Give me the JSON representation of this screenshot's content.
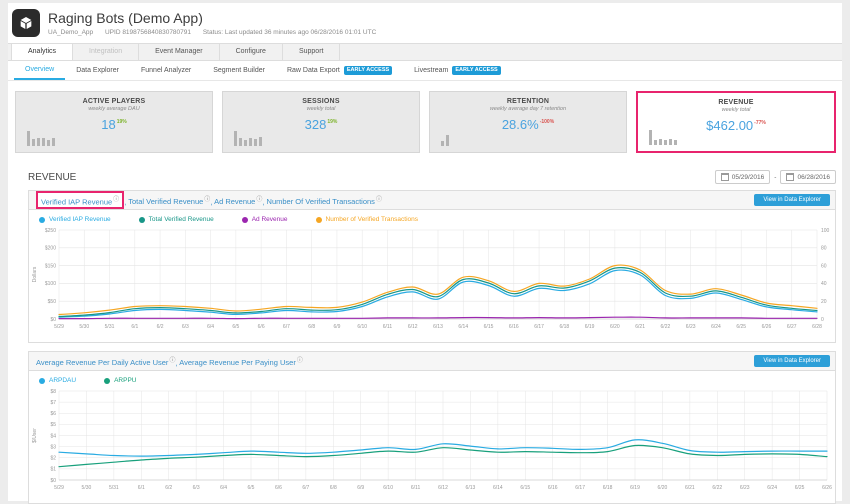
{
  "header": {
    "app_title": "Raging Bots (Demo App)",
    "app_id": "UA_Demo_App",
    "upid": "UPID 8198756840830780791",
    "status": "Status: Last updated 36 minutes ago 06/28/2016 01:01 UTC"
  },
  "main_tabs": [
    {
      "label": "Analytics",
      "state": "active"
    },
    {
      "label": "Integration",
      "state": "disabled"
    },
    {
      "label": "Event Manager",
      "state": "normal"
    },
    {
      "label": "Configure",
      "state": "normal"
    },
    {
      "label": "Support",
      "state": "normal"
    }
  ],
  "sub_tabs": [
    {
      "label": "Overview",
      "active": true
    },
    {
      "label": "Data Explorer",
      "active": false
    },
    {
      "label": "Funnel Analyzer",
      "active": false
    },
    {
      "label": "Segment Builder",
      "active": false
    },
    {
      "label": "Raw Data Export",
      "active": false,
      "badge": "EARLY ACCESS"
    },
    {
      "label": "Livestream",
      "active": false,
      "badge": "EARLY ACCESS"
    }
  ],
  "kpi_cards": [
    {
      "title": "ACTIVE PLAYERS",
      "subtitle": "weekly average DAU",
      "value": "18",
      "delta": "19%",
      "delta_color": "#7db32b",
      "highlighted": false,
      "spark_bars": [
        1,
        0.45,
        0.55,
        0.5,
        0.4,
        0.5
      ]
    },
    {
      "title": "SESSIONS",
      "subtitle": "weekly total",
      "value": "328",
      "delta": "19%",
      "delta_color": "#7db32b",
      "highlighted": false,
      "spark_bars": [
        1,
        0.5,
        0.4,
        0.55,
        0.45,
        0.6
      ]
    },
    {
      "title": "RETENTION",
      "subtitle": "weekly average day 7 retention",
      "value": "28.6%",
      "delta": "-100%",
      "delta_color": "#d9534f",
      "highlighted": false,
      "spark_bars": [
        0.35,
        0.75
      ]
    },
    {
      "title": "REVENUE",
      "subtitle": "weekly total",
      "value": "$462.00",
      "delta": "-77%",
      "delta_color": "#d9534f",
      "highlighted": true,
      "spark_bars": [
        1,
        0.35,
        0.4,
        0.35,
        0.4,
        0.35
      ]
    }
  ],
  "section": {
    "title": "REVENUE",
    "date_from": "05/29/2016",
    "date_to": "06/28/2016"
  },
  "panels": [
    {
      "title_parts": [
        {
          "text": "Verified IAP Revenue",
          "highlighted": true
        },
        {
          "text": "Total Verified Revenue",
          "highlighted": false
        },
        {
          "text": "Ad Revenue",
          "highlighted": false
        },
        {
          "text": "Number Of Verified Transactions",
          "highlighted": false
        }
      ],
      "view_button": "View in Data Explorer"
    },
    {
      "title_parts": [
        {
          "text": "Average Revenue Per Daily Active User",
          "highlighted": false
        },
        {
          "text": "Average Revenue Per Paying User",
          "highlighted": false
        }
      ],
      "view_button": "View in Data Explorer"
    }
  ],
  "colors": {
    "accent_blue": "#29abe2",
    "highlight_pink": "#e8246d",
    "delta_green": "#7db32b",
    "delta_red": "#d9534f"
  },
  "chart_data": [
    {
      "type": "line",
      "title": "Verified IAP Revenue, Total Verified Revenue, Ad Revenue, Number Of Verified Transactions",
      "x": [
        "5/29",
        "5/30",
        "5/31",
        "6/1",
        "6/2",
        "6/3",
        "6/4",
        "6/5",
        "6/6",
        "6/7",
        "6/8",
        "6/9",
        "6/10",
        "6/11",
        "6/12",
        "6/13",
        "6/14",
        "6/15",
        "6/16",
        "6/17",
        "6/18",
        "6/19",
        "6/20",
        "6/21",
        "6/22",
        "6/23",
        "6/24",
        "6/25",
        "6/26",
        "6/27",
        "6/28"
      ],
      "ylabel": "Dollars",
      "ylim": [
        0,
        250
      ],
      "yticks": [
        0,
        50,
        100,
        150,
        200,
        250
      ],
      "ytick_labels": [
        "$0",
        "$50",
        "$100",
        "$150",
        "$200",
        "$250"
      ],
      "y2lim": [
        0,
        100
      ],
      "y2ticks": [
        0,
        20,
        40,
        60,
        80,
        100
      ],
      "grid": true,
      "legend_position": "top-left",
      "series": [
        {
          "name": "Verified IAP Revenue",
          "color": "#29abe2",
          "axis": "left",
          "values": [
            5,
            8,
            14,
            24,
            27,
            24,
            19,
            13,
            17,
            24,
            20,
            21,
            35,
            62,
            76,
            56,
            104,
            94,
            64,
            86,
            80,
            99,
            136,
            124,
            66,
            58,
            73,
            55,
            34,
            26,
            20
          ]
        },
        {
          "name": "Total Verified Revenue",
          "color": "#189688",
          "axis": "left",
          "values": [
            7,
            11,
            18,
            29,
            32,
            29,
            24,
            17,
            21,
            29,
            25,
            26,
            41,
            69,
            83,
            63,
            111,
            101,
            71,
            93,
            87,
            107,
            143,
            131,
            73,
            64,
            79,
            61,
            39,
            30,
            24
          ]
        },
        {
          "name": "Ad Revenue",
          "color": "#9b26af",
          "axis": "left",
          "values": [
            1,
            1,
            2,
            2,
            2,
            2,
            2,
            1,
            2,
            2,
            2,
            2,
            2,
            3,
            3,
            3,
            4,
            4,
            3,
            4,
            3,
            4,
            5,
            5,
            3,
            3,
            3,
            3,
            2,
            2,
            2
          ]
        },
        {
          "name": "Number of Verified Transactions",
          "color": "#f5a623",
          "axis": "right",
          "values": [
            5,
            7,
            10,
            14,
            15,
            14,
            12,
            9,
            11,
            14,
            13,
            13,
            19,
            30,
            36,
            28,
            47,
            43,
            31,
            40,
            37,
            45,
            60,
            55,
            32,
            28,
            34,
            27,
            18,
            15,
            12
          ]
        }
      ]
    },
    {
      "type": "line",
      "title": "Average Revenue Per Daily Active User, Average Revenue Per Paying User",
      "x": [
        "5/29",
        "5/30",
        "5/31",
        "6/1",
        "6/2",
        "6/3",
        "6/4",
        "6/5",
        "6/6",
        "6/7",
        "6/8",
        "6/9",
        "6/10",
        "6/11",
        "6/12",
        "6/13",
        "6/14",
        "6/15",
        "6/16",
        "6/17",
        "6/18",
        "6/19",
        "6/20",
        "6/21",
        "6/22",
        "6/23",
        "6/24",
        "6/25",
        "6/26"
      ],
      "ylabel": "$/User",
      "ylim": [
        0,
        8
      ],
      "yticks": [
        0,
        1,
        2,
        3,
        4,
        5,
        6,
        7,
        8
      ],
      "ytick_labels": [
        "$0",
        "$1",
        "$2",
        "$3",
        "$4",
        "$5",
        "$6",
        "$7",
        "$8"
      ],
      "grid": true,
      "legend_position": "top-left",
      "series": [
        {
          "name": "ARPDAU",
          "color": "#29abe2",
          "axis": "left",
          "values": [
            2.5,
            2.35,
            2.2,
            2.15,
            2.2,
            2.3,
            2.45,
            2.6,
            2.5,
            2.4,
            2.5,
            2.7,
            2.9,
            2.75,
            3.25,
            3.05,
            2.8,
            2.9,
            2.85,
            2.75,
            2.9,
            3.6,
            3.3,
            2.65,
            2.5,
            2.55,
            2.6,
            2.6,
            2.6
          ]
        },
        {
          "name": "ARPPU",
          "color": "#18a07c",
          "axis": "left",
          "values": [
            1.2,
            1.4,
            1.6,
            1.8,
            1.95,
            2.05,
            2.2,
            2.3,
            2.2,
            2.1,
            2.2,
            2.4,
            2.6,
            2.5,
            2.9,
            2.7,
            2.5,
            2.55,
            2.5,
            2.45,
            2.55,
            3.1,
            2.9,
            2.35,
            2.2,
            2.3,
            2.35,
            2.3,
            2.1
          ]
        }
      ]
    }
  ]
}
